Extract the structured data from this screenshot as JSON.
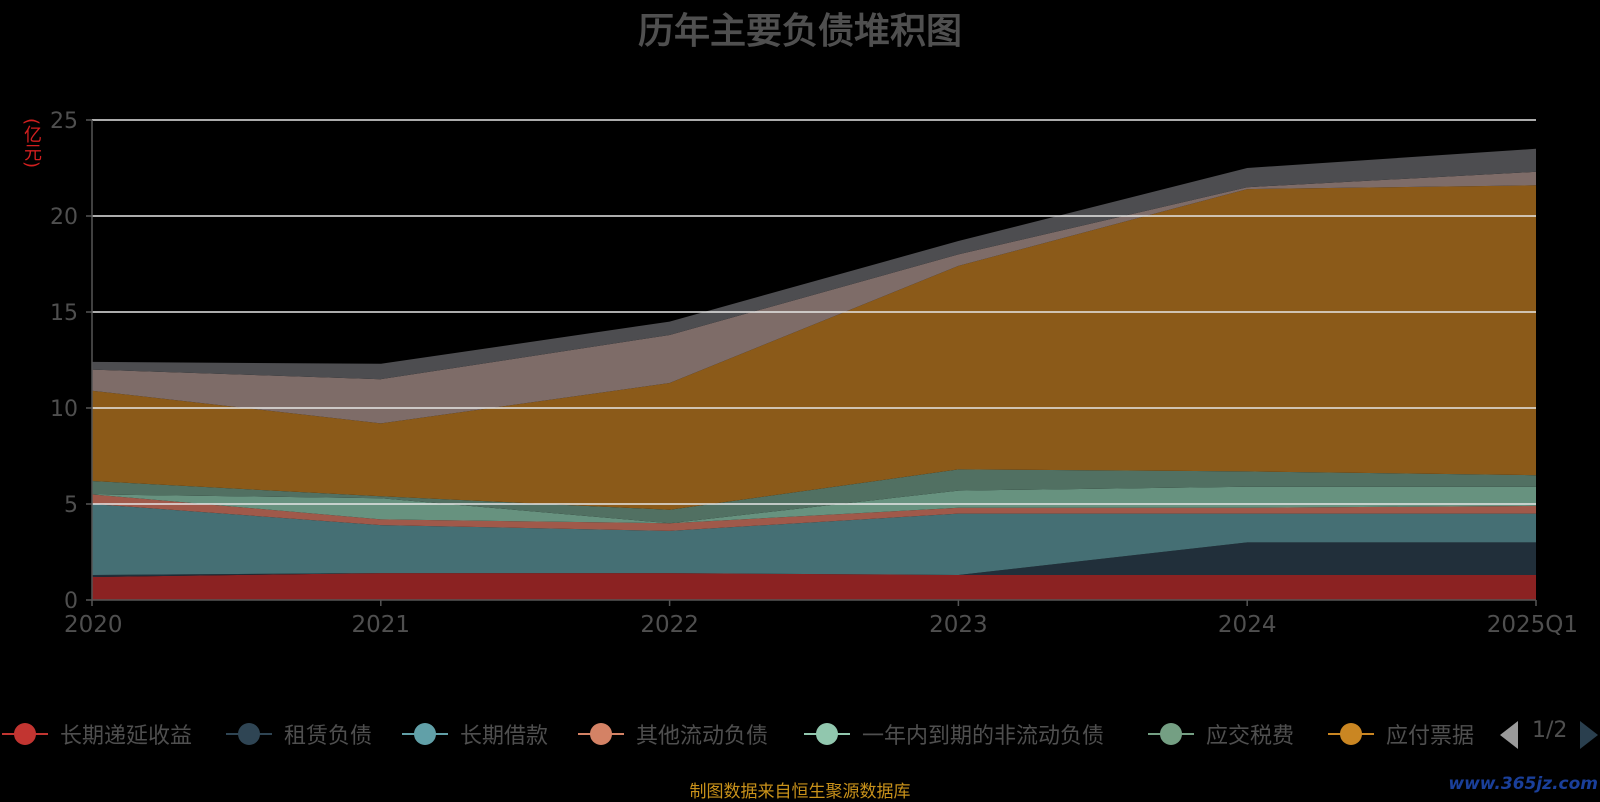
{
  "title": "历年主要负债堆积图",
  "unit_label": "(亿元)",
  "source_text": "制图数据来自恒生聚源数据库",
  "watermark": "www.365jz.com",
  "legend_page": "1/2",
  "legend": [
    {
      "name": "长期递延收益",
      "color": "#c23531"
    },
    {
      "name": "租赁负债",
      "color": "#2f4554"
    },
    {
      "name": "长期借款",
      "color": "#61a0a8"
    },
    {
      "name": "其他流动负债",
      "color": "#d48265"
    },
    {
      "name": "一年内到期的非流动负债",
      "color": "#91c7ae"
    },
    {
      "name": "应交税费",
      "color": "#749f83"
    },
    {
      "name": "应付票据",
      "color": "#ca8622"
    }
  ],
  "chart_data": {
    "type": "area",
    "stacked": true,
    "title": "历年主要负债堆积图",
    "ylabel": "(亿元)",
    "categories": [
      "2020",
      "2021",
      "2022",
      "2023",
      "2024",
      "2025Q1"
    ],
    "ylim": [
      0,
      25
    ],
    "yticks": [
      0,
      5,
      10,
      15,
      20,
      25
    ],
    "grid": true,
    "legend_position": "bottom",
    "series": [
      {
        "name": "长期递延收益",
        "color": "#8b2222",
        "values": [
          1.2,
          1.4,
          1.4,
          1.3,
          1.3,
          1.3
        ]
      },
      {
        "name": "租赁负债",
        "color": "#212f3a",
        "values": [
          0.1,
          0,
          0,
          0,
          1.7,
          1.7
        ]
      },
      {
        "name": "长期借款",
        "color": "#456f74",
        "values": [
          3.7,
          2.5,
          2.2,
          3.2,
          1.5,
          1.5
        ]
      },
      {
        "name": "其他流动负债",
        "color": "#a0594a",
        "values": [
          0.5,
          0.3,
          0.4,
          0.3,
          0.3,
          0.4
        ]
      },
      {
        "name": "一年内到期的非流动负债",
        "color": "#67927f",
        "values": [
          0,
          1.1,
          0,
          0.9,
          1.1,
          1
        ]
      },
      {
        "name": "应交税费",
        "color": "#517062",
        "values": [
          0.7,
          0.1,
          0.7,
          1.1,
          0.8,
          0.6
        ]
      },
      {
        "name": "应付票据",
        "color": "#8b5a19",
        "values": [
          4.7,
          3.8,
          6.6,
          10.6,
          14.7,
          15.1
        ]
      },
      {
        "name": "",
        "color": "#7e6c68",
        "values": [
          1.1,
          2.3,
          2.5,
          0.6,
          0.1,
          0.7
        ]
      },
      {
        "name": "",
        "color": "#4d4d50",
        "values": [
          0.4,
          0.8,
          0.7,
          0.7,
          1.0,
          1.2
        ]
      }
    ]
  }
}
